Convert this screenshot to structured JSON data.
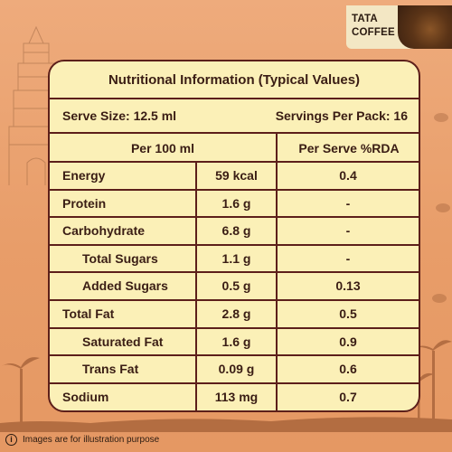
{
  "brand": {
    "line1": "TATA",
    "line2": "COFFEE"
  },
  "panel": {
    "title": "Nutritional Information (Typical Values)",
    "serve_size": "Serve Size: 12.5 ml",
    "servings_per_pack": "Servings Per Pack: 16",
    "col_per100": "Per 100 ml",
    "col_rda": "Per Serve %RDA",
    "rows": [
      {
        "label": "Energy",
        "per100": "59 kcal",
        "rda": "0.4",
        "indent": false
      },
      {
        "label": "Protein",
        "per100": "1.6 g",
        "rda": "-",
        "indent": false
      },
      {
        "label": "Carbohydrate",
        "per100": "6.8 g",
        "rda": "-",
        "indent": false
      },
      {
        "label": "Total Sugars",
        "per100": "1.1 g",
        "rda": "-",
        "indent": true
      },
      {
        "label": "Added Sugars",
        "per100": "0.5 g",
        "rda": "0.13",
        "indent": true
      },
      {
        "label": "Total Fat",
        "per100": "2.8 g",
        "rda": "0.5",
        "indent": false
      },
      {
        "label": "Saturated Fat",
        "per100": "1.6 g",
        "rda": "0.9",
        "indent": true
      },
      {
        "label": "Trans Fat",
        "per100": "0.09 g",
        "rda": "0.6",
        "indent": true
      },
      {
        "label": "Sodium",
        "per100": "113 mg",
        "rda": "0.7",
        "indent": false
      }
    ]
  },
  "disclaimer": {
    "icon": "info-icon",
    "text": "Images are for illustration purpose"
  },
  "colors": {
    "background": "#e9a06f",
    "panel": "#fbf0b7",
    "border": "#5c1f1a",
    "text": "#3a1d14"
  }
}
